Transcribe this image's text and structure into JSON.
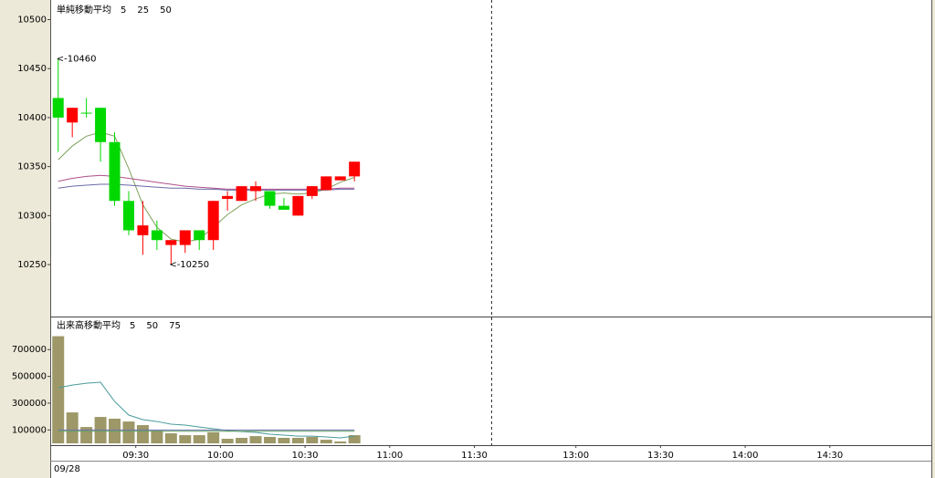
{
  "chart_data": [
    {
      "type": "candlestick",
      "legend_title": "単純移動平均",
      "x": [
        "09:00",
        "09:05",
        "09:10",
        "09:15",
        "09:20",
        "09:25",
        "09:30",
        "09:35",
        "09:40",
        "09:45",
        "09:50",
        "09:55",
        "10:00",
        "10:05",
        "10:10",
        "10:15",
        "10:20",
        "10:25",
        "10:30",
        "10:35",
        "10:40",
        "10:45"
      ],
      "open": [
        10420,
        10395,
        10405,
        10410,
        10375,
        10315,
        10280,
        10285,
        10270,
        10270,
        10285,
        10275,
        10317,
        10315,
        10325,
        10325,
        10310,
        10300,
        10320,
        10326,
        10336,
        10340
      ],
      "high": [
        10460,
        10410,
        10420,
        10410,
        10385,
        10325,
        10315,
        10295,
        10275,
        10285,
        10285,
        10315,
        10325,
        10330,
        10335,
        10325,
        10318,
        10320,
        10330,
        10340,
        10340,
        10355
      ],
      "low": [
        10365,
        10380,
        10400,
        10355,
        10310,
        10280,
        10260,
        10265,
        10250,
        10262,
        10265,
        10265,
        10305,
        10315,
        10315,
        10307,
        10306,
        10300,
        10317,
        10326,
        10336,
        10335
      ],
      "close": [
        10400,
        10410,
        10405,
        10375,
        10315,
        10285,
        10290,
        10275,
        10275,
        10285,
        10275,
        10315,
        10320,
        10330,
        10330,
        10310,
        10306,
        10320,
        10330,
        10340,
        10340,
        10355
      ],
      "up_color": "#ff0000",
      "down_color": "#00d800",
      "series": [
        {
          "name": "5",
          "color": "#7ea05a",
          "values": [
            10357,
            10371,
            10381,
            10385,
            10381,
            10348,
            10311,
            10288,
            10276,
            10273,
            10276,
            10288,
            10301,
            10311,
            10317,
            10322,
            10323,
            10322,
            10323,
            10327,
            10334,
            10339
          ]
        },
        {
          "name": "25",
          "color": "#b0508a",
          "values": [
            10335,
            10338,
            10340,
            10341,
            10340,
            10338,
            10336,
            10334,
            10332,
            10330,
            10329,
            10328,
            10327,
            10327,
            10327,
            10327,
            10327,
            10327,
            10327,
            10327,
            10328,
            10328
          ]
        },
        {
          "name": "50",
          "color": "#6a6aa8",
          "values": [
            10328,
            10330,
            10331,
            10332,
            10332,
            10331,
            10330,
            10329,
            10328,
            10328,
            10327,
            10327,
            10326,
            10326,
            10326,
            10326,
            10326,
            10326,
            10326,
            10326,
            10327,
            10327
          ]
        }
      ],
      "annotations": [
        {
          "text": "<-10460",
          "color": "#ff0000"
        },
        {
          "text": "<-10250",
          "color": "#00b000"
        }
      ],
      "ylim": [
        10197,
        10520
      ],
      "yticks": [
        10250,
        10300,
        10350,
        10400,
        10450,
        10500
      ]
    },
    {
      "type": "bar",
      "legend_title": "出来高移動平均",
      "x": [
        "09:00",
        "09:05",
        "09:10",
        "09:15",
        "09:20",
        "09:25",
        "09:30",
        "09:35",
        "09:40",
        "09:45",
        "09:50",
        "09:55",
        "10:00",
        "10:05",
        "10:10",
        "10:15",
        "10:20",
        "10:25",
        "10:30",
        "10:35",
        "10:40",
        "10:45"
      ],
      "values": [
        800000,
        231000,
        122000,
        197000,
        184000,
        163000,
        136000,
        95000,
        75000,
        61000,
        61000,
        82000,
        34000,
        41000,
        54000,
        48000,
        41000,
        41000,
        48000,
        27000,
        14000,
        61000
      ],
      "color": "#9e9868",
      "series": [
        {
          "name": "5",
          "color": "#4a9a9a",
          "values": [
            415000,
            435000,
            449000,
            456000,
            313000,
            211000,
            177000,
            163000,
            143000,
            136000,
            122000,
            109000,
            95000,
            88000,
            82000,
            68000,
            61000,
            54000,
            54000,
            48000,
            41000,
            54000
          ]
        },
        {
          "name": "50",
          "color": "#7070b0",
          "values": [
            100000,
            100000,
            100000,
            100000,
            100000,
            100000,
            100000,
            100000,
            100000,
            100000,
            100000,
            100000,
            100000,
            100000,
            100000,
            100000,
            100000,
            100000,
            100000,
            100000,
            100000,
            100000
          ]
        },
        {
          "name": "75",
          "color": "#60a060",
          "values": [
            90000,
            90000,
            90000,
            90000,
            90000,
            90000,
            90000,
            90000,
            90000,
            90000,
            90000,
            90000,
            90000,
            90000,
            90000,
            90000,
            90000,
            90000,
            90000,
            90000,
            90000,
            90000
          ]
        }
      ],
      "ylim": [
        0,
        940000
      ],
      "yticks": [
        100000,
        300000,
        500000,
        700000
      ]
    }
  ],
  "time_axis": {
    "ticks": [
      "09:30",
      "10:00",
      "10:30",
      "11:00",
      "11:30",
      "13:00",
      "13:30",
      "14:00",
      "14:30"
    ],
    "date": "09/28"
  }
}
